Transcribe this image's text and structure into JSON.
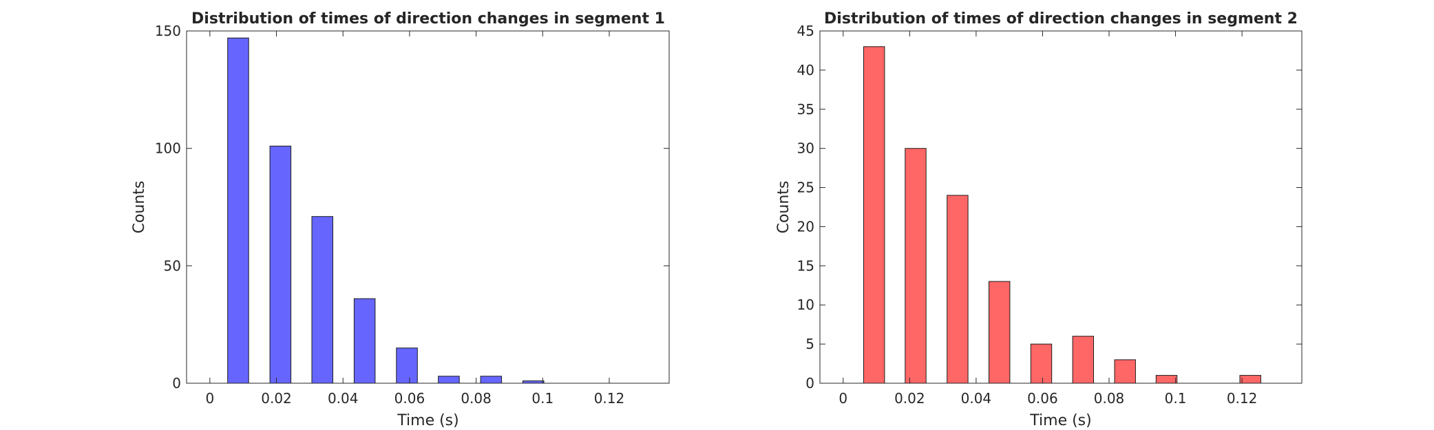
{
  "chart_data": [
    {
      "type": "bar",
      "title": "Distribution of times of direction changes in segment 1",
      "xlabel": "Time (s)",
      "ylabel": "Counts",
      "x": [
        0.0085,
        0.0212,
        0.0338,
        0.0465,
        0.0592,
        0.0718,
        0.0845,
        0.0972,
        0.1098,
        0.1225
      ],
      "values": [
        147,
        101,
        71,
        36,
        15,
        3,
        3,
        1,
        0,
        0
      ],
      "bar_width": 0.0063,
      "xlim": [
        -0.007,
        0.138
      ],
      "ylim": [
        0,
        150
      ],
      "xticks": [
        0,
        0.02,
        0.04,
        0.06,
        0.08,
        0.1,
        0.12
      ],
      "xtick_labels": [
        "0",
        "0.02",
        "0.04",
        "0.06",
        "0.08",
        "0.1",
        "0.12"
      ],
      "yticks": [
        0,
        50,
        100,
        150
      ],
      "ytick_labels": [
        "0",
        "50",
        "100",
        "150"
      ],
      "color": "#6666ff",
      "grid": false
    },
    {
      "type": "bar",
      "title": "Distribution of times of direction changes in segment 2",
      "xlabel": "Time (s)",
      "ylabel": "Counts",
      "x": [
        0.0093,
        0.0218,
        0.0344,
        0.047,
        0.0596,
        0.0722,
        0.0848,
        0.0973,
        0.1099,
        0.1225
      ],
      "values": [
        43,
        30,
        24,
        13,
        5,
        6,
        3,
        1,
        0,
        1
      ],
      "bar_width": 0.0063,
      "xlim": [
        -0.007,
        0.138
      ],
      "ylim": [
        0,
        45
      ],
      "xticks": [
        0,
        0.02,
        0.04,
        0.06,
        0.08,
        0.1,
        0.12
      ],
      "xtick_labels": [
        "0",
        "0.02",
        "0.04",
        "0.06",
        "0.08",
        "0.1",
        "0.12"
      ],
      "yticks": [
        0,
        5,
        10,
        15,
        20,
        25,
        30,
        35,
        40,
        45
      ],
      "ytick_labels": [
        "0",
        "5",
        "10",
        "15",
        "20",
        "25",
        "30",
        "35",
        "40",
        "45"
      ],
      "color": "#ff6666",
      "grid": false
    }
  ]
}
